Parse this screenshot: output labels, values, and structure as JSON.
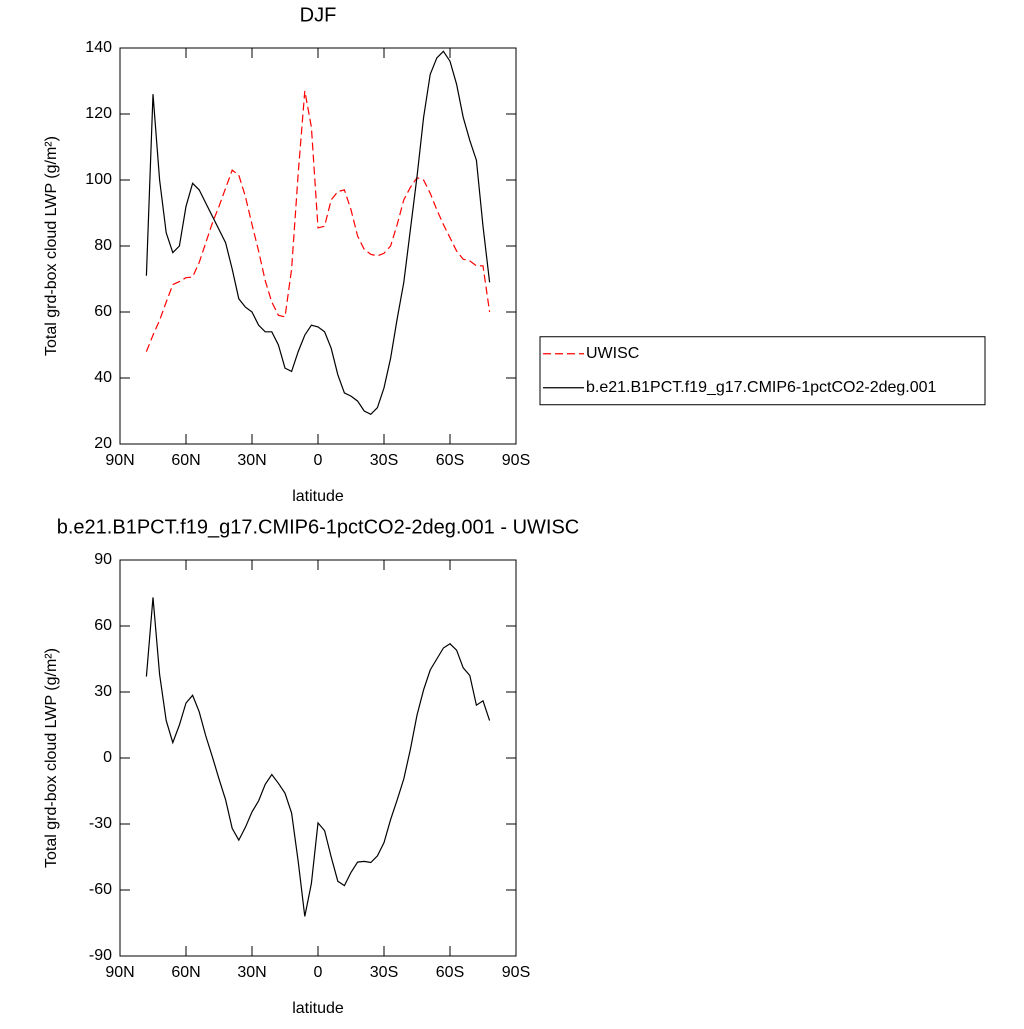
{
  "chart_data": [
    {
      "type": "line",
      "title": "DJF",
      "xlabel": "latitude",
      "ylabel": "Total grd-box cloud LWP (g/m²)",
      "x": [
        78,
        75,
        72,
        69,
        66,
        63,
        60,
        57,
        54,
        51,
        48,
        45,
        42,
        39,
        36,
        33,
        30,
        27,
        24,
        21,
        18,
        15,
        12,
        9,
        6,
        3,
        0,
        -3,
        -6,
        -9,
        -12,
        -15,
        -18,
        -21,
        -24,
        -27,
        -30,
        -33,
        -36,
        -39,
        -42,
        -45,
        -48,
        -51,
        -54,
        -57,
        -60,
        -63,
        -66,
        -69,
        -72,
        -75,
        -78
      ],
      "series": [
        {
          "name": "UWISC",
          "color": "#ff0000",
          "dashed": true,
          "values": [
            48,
            53,
            57.5,
            63,
            68.3,
            69.2,
            70.4,
            70.6,
            75,
            81,
            87,
            92,
            97.5,
            103,
            101.5,
            95,
            86.5,
            78.5,
            69.5,
            63,
            59,
            58.5,
            73,
            102,
            127,
            116,
            85.5,
            86,
            94,
            96.5,
            97,
            91,
            83,
            79,
            77.5,
            77,
            77.8,
            80,
            86.5,
            94,
            97.8,
            100.7,
            100,
            96,
            91,
            86.5,
            82.5,
            78.5,
            76,
            75.5,
            74,
            74,
            60
          ]
        },
        {
          "name": "b.e21.B1PCT.f19_g17.CMIP6-1pctCO2-2deg.001",
          "color": "#000000",
          "dashed": false,
          "values": [
            71,
            126,
            100,
            84,
            78,
            80,
            92,
            99,
            97,
            93,
            89,
            85,
            81,
            73,
            64,
            61.5,
            60,
            56,
            54,
            54,
            50,
            43,
            42,
            48,
            53,
            56,
            55.5,
            54,
            49,
            41,
            35.5,
            34.5,
            33,
            30,
            29,
            31,
            37,
            46,
            58,
            69,
            85,
            101,
            119,
            132,
            137,
            139,
            136,
            129,
            119,
            112,
            106,
            86,
            69
          ]
        }
      ],
      "xlim": [
        90,
        -90
      ],
      "xticks": [
        {
          "value": 90,
          "label": "90N"
        },
        {
          "value": 60,
          "label": "60N"
        },
        {
          "value": 30,
          "label": "30N"
        },
        0,
        {
          "value": -30,
          "label": "30S"
        },
        {
          "value": -60,
          "label": "60S"
        },
        {
          "value": -90,
          "label": "90S"
        }
      ],
      "ylim": [
        20,
        140
      ],
      "yticks": [
        20,
        40,
        60,
        80,
        100,
        120,
        140
      ],
      "legend": "right"
    },
    {
      "type": "line",
      "title": "b.e21.B1PCT.f19_g17.CMIP6-1pctCO2-2deg.001 - UWISC",
      "xlabel": "latitude",
      "ylabel": "Total grd-box cloud LWP (g/m²)",
      "x": [
        78,
        75,
        72,
        69,
        66,
        63,
        60,
        57,
        54,
        51,
        48,
        45,
        42,
        39,
        36,
        33,
        30,
        27,
        24,
        21,
        18,
        15,
        12,
        9,
        6,
        3,
        0,
        -3,
        -6,
        -9,
        -12,
        -15,
        -18,
        -21,
        -24,
        -27,
        -30,
        -33,
        -36,
        -39,
        -42,
        -45,
        -48,
        -51,
        -54,
        -57,
        -60,
        -63,
        -66,
        -69,
        -72,
        -75,
        -78
      ],
      "series": [
        {
          "color": "#000000",
          "dashed": false,
          "values": [
            37,
            73,
            38,
            17,
            7,
            15,
            25,
            28.5,
            21,
            10,
            0.5,
            -9.5,
            -19,
            -32,
            -37.3,
            -31.5,
            -24.5,
            -19.5,
            -12,
            -7.5,
            -11.5,
            -16,
            -25,
            -47,
            -72,
            -57,
            -29.5,
            -33,
            -45,
            -56,
            -58,
            -52,
            -47.3,
            -47,
            -47.5,
            -44.5,
            -38.5,
            -28,
            -19,
            -9.5,
            4,
            19.5,
            31,
            40,
            45,
            50,
            51.9,
            49,
            41,
            37.5,
            24,
            26,
            17
          ]
        }
      ],
      "xlim": [
        90,
        -90
      ],
      "xticks": [
        {
          "value": 90,
          "label": "90N"
        },
        {
          "value": 60,
          "label": "60N"
        },
        {
          "value": 30,
          "label": "30N"
        },
        0,
        {
          "value": -30,
          "label": "30S"
        },
        {
          "value": -60,
          "label": "60S"
        },
        {
          "value": -90,
          "label": "90S"
        }
      ],
      "ylim": [
        -90,
        90
      ],
      "yticks": [
        -90,
        -60,
        -30,
        0,
        30,
        60,
        90
      ]
    }
  ]
}
